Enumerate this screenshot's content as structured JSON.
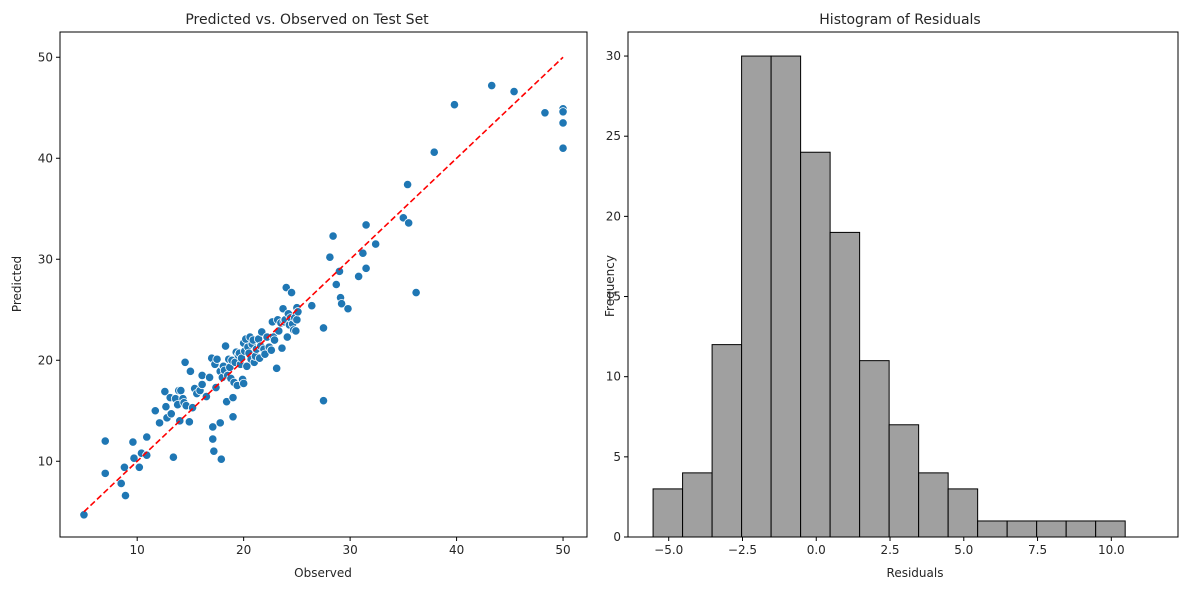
{
  "chart_data": [
    {
      "type": "scatter",
      "title": "Predicted vs. Observed on Test Set",
      "xlabel": "Observed",
      "ylabel": "Predicted",
      "xlim": [
        2.75,
        52.25
      ],
      "ylim": [
        2.5,
        52.5
      ],
      "xticks": [
        10,
        20,
        30,
        40,
        50
      ],
      "yticks": [
        10,
        20,
        30,
        40,
        50
      ],
      "grid": false,
      "point_color": "#1f77b4",
      "line_color": "#ff0000",
      "reference_line": {
        "x": [
          5,
          50
        ],
        "y": [
          5,
          50
        ],
        "style": "dashed"
      },
      "points": [
        [
          5.0,
          4.7
        ],
        [
          7.0,
          12.0
        ],
        [
          7.0,
          8.8
        ],
        [
          8.5,
          7.8
        ],
        [
          8.8,
          9.4
        ],
        [
          8.9,
          6.6
        ],
        [
          9.6,
          11.9
        ],
        [
          9.7,
          10.3
        ],
        [
          10.2,
          9.4
        ],
        [
          10.4,
          10.8
        ],
        [
          10.9,
          12.4
        ],
        [
          10.9,
          10.6
        ],
        [
          11.7,
          15.0
        ],
        [
          12.1,
          13.8
        ],
        [
          12.6,
          16.9
        ],
        [
          12.7,
          15.4
        ],
        [
          12.8,
          14.3
        ],
        [
          13.1,
          16.3
        ],
        [
          13.2,
          14.7
        ],
        [
          13.4,
          10.4
        ],
        [
          13.6,
          16.2
        ],
        [
          13.8,
          15.6
        ],
        [
          13.9,
          17.0
        ],
        [
          14.0,
          14.0
        ],
        [
          14.1,
          17.0
        ],
        [
          14.3,
          16.2
        ],
        [
          14.4,
          15.8
        ],
        [
          14.5,
          19.8
        ],
        [
          14.6,
          15.5
        ],
        [
          14.9,
          13.9
        ],
        [
          15.0,
          18.9
        ],
        [
          15.2,
          15.3
        ],
        [
          15.4,
          17.2
        ],
        [
          15.6,
          16.7
        ],
        [
          15.9,
          17.0
        ],
        [
          16.1,
          18.5
        ],
        [
          16.1,
          17.6
        ],
        [
          16.5,
          16.4
        ],
        [
          16.8,
          18.3
        ],
        [
          17.0,
          20.2
        ],
        [
          17.1,
          13.4
        ],
        [
          17.1,
          12.2
        ],
        [
          17.2,
          11.0
        ],
        [
          17.3,
          19.6
        ],
        [
          17.4,
          17.3
        ],
        [
          17.5,
          20.1
        ],
        [
          17.8,
          18.9
        ],
        [
          17.8,
          13.8
        ],
        [
          17.9,
          10.2
        ],
        [
          18.0,
          18.3
        ],
        [
          18.1,
          19.4
        ],
        [
          18.2,
          19.0
        ],
        [
          18.3,
          21.4
        ],
        [
          18.4,
          15.9
        ],
        [
          18.5,
          18.5
        ],
        [
          18.6,
          20.1
        ],
        [
          18.7,
          19.3
        ],
        [
          18.8,
          18.2
        ],
        [
          18.9,
          20.0
        ],
        [
          19.0,
          16.3
        ],
        [
          19.0,
          14.4
        ],
        [
          19.1,
          17.8
        ],
        [
          19.2,
          19.8
        ],
        [
          19.3,
          20.8
        ],
        [
          19.4,
          17.5
        ],
        [
          19.5,
          20.5
        ],
        [
          19.6,
          20.7
        ],
        [
          19.7,
          19.6
        ],
        [
          19.8,
          20.2
        ],
        [
          19.9,
          18.1
        ],
        [
          20.0,
          21.7
        ],
        [
          20.0,
          17.7
        ],
        [
          20.1,
          20.9
        ],
        [
          20.2,
          22.1
        ],
        [
          20.3,
          19.4
        ],
        [
          20.4,
          21.3
        ],
        [
          20.5,
          20.7
        ],
        [
          20.6,
          22.3
        ],
        [
          20.7,
          20.1
        ],
        [
          20.8,
          21.6
        ],
        [
          20.9,
          22.0
        ],
        [
          21.0,
          19.8
        ],
        [
          21.1,
          20.4
        ],
        [
          21.2,
          21.1
        ],
        [
          21.4,
          22.1
        ],
        [
          21.5,
          20.2
        ],
        [
          21.6,
          21.4
        ],
        [
          21.7,
          22.8
        ],
        [
          21.9,
          21.1
        ],
        [
          22.0,
          20.6
        ],
        [
          22.2,
          22.3
        ],
        [
          22.4,
          21.3
        ],
        [
          22.6,
          21.0
        ],
        [
          22.7,
          23.8
        ],
        [
          22.8,
          22.3
        ],
        [
          22.9,
          22.0
        ],
        [
          23.1,
          19.2
        ],
        [
          23.2,
          24.0
        ],
        [
          23.3,
          22.9
        ],
        [
          23.5,
          23.7
        ],
        [
          23.6,
          21.2
        ],
        [
          23.7,
          25.1
        ],
        [
          23.8,
          23.8
        ],
        [
          23.9,
          24.0
        ],
        [
          24.0,
          27.2
        ],
        [
          24.1,
          22.3
        ],
        [
          24.2,
          24.6
        ],
        [
          24.3,
          23.5
        ],
        [
          24.4,
          24.2
        ],
        [
          24.5,
          26.7
        ],
        [
          24.6,
          23.6
        ],
        [
          24.7,
          23.0
        ],
        [
          24.8,
          24.2
        ],
        [
          24.9,
          22.9
        ],
        [
          25.0,
          25.2
        ],
        [
          25.0,
          24.0
        ],
        [
          25.1,
          24.8
        ],
        [
          26.4,
          25.4
        ],
        [
          27.5,
          23.2
        ],
        [
          27.5,
          16.0
        ],
        [
          28.1,
          30.2
        ],
        [
          28.4,
          32.3
        ],
        [
          28.7,
          27.5
        ],
        [
          29.0,
          28.8
        ],
        [
          29.1,
          26.2
        ],
        [
          29.2,
          25.6
        ],
        [
          29.8,
          25.1
        ],
        [
          30.8,
          28.3
        ],
        [
          31.2,
          30.6
        ],
        [
          31.5,
          33.4
        ],
        [
          31.5,
          29.1
        ],
        [
          32.4,
          31.5
        ],
        [
          35.0,
          34.1
        ],
        [
          35.4,
          37.4
        ],
        [
          35.5,
          33.6
        ],
        [
          36.2,
          26.7
        ],
        [
          37.9,
          40.6
        ],
        [
          39.8,
          45.3
        ],
        [
          43.3,
          47.2
        ],
        [
          45.4,
          46.6
        ],
        [
          48.3,
          44.5
        ],
        [
          50.0,
          44.9
        ],
        [
          50.0,
          44.6
        ],
        [
          50.0,
          43.5
        ],
        [
          50.0,
          41.0
        ]
      ]
    },
    {
      "type": "bar",
      "title": "Histogram of Residuals",
      "xlabel": "Residuals",
      "ylabel": "Frequency",
      "xlim": [
        -6.38,
        12.26
      ],
      "ylim": [
        0,
        31.5
      ],
      "xticks": [
        -5.0,
        -2.5,
        0.0,
        2.5,
        5.0,
        7.5,
        10.0
      ],
      "xtick_labels": [
        "−5.0",
        "−2.5",
        "0.0",
        "2.5",
        "5.0",
        "7.5",
        "10.0"
      ],
      "yticks": [
        0,
        5,
        10,
        15,
        20,
        25,
        30
      ],
      "grid": false,
      "bar_color": "#a0a0a0",
      "edge_color": "#000000",
      "bin_start": -5.53,
      "bin_width": 1.0,
      "values": [
        3,
        4,
        12,
        30,
        30,
        24,
        19,
        11,
        7,
        4,
        3,
        1,
        1,
        1,
        1,
        1
      ]
    }
  ]
}
